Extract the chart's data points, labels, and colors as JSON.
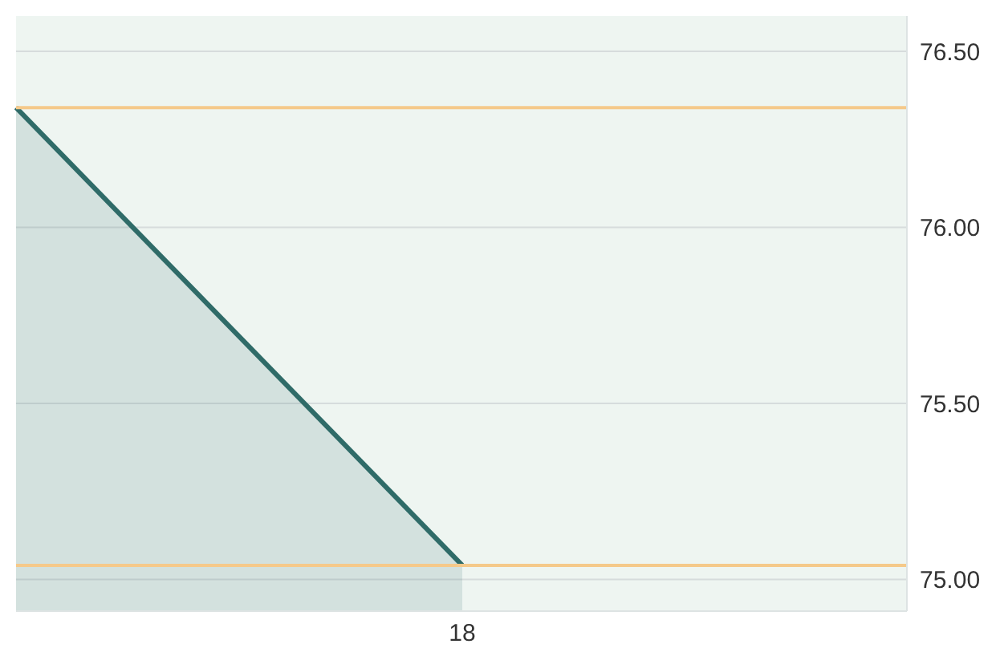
{
  "chart_data": {
    "type": "area",
    "categories": [
      null,
      "18"
    ],
    "series": [
      {
        "color": "#2f6b68",
        "values": [
          76.34,
          75.04
        ]
      }
    ],
    "ylim": [
      74.91,
      76.6
    ],
    "yticks": [
      {
        "value": 75,
        "label": "75.00"
      },
      {
        "value": 75.5,
        "label": "75.50"
      },
      {
        "value": 76,
        "label": "76.00"
      },
      {
        "value": 76.5,
        "label": "76.50"
      }
    ],
    "ref_lines": [
      {
        "axis": "y",
        "value": 76.34,
        "color": "#f5c98a"
      },
      {
        "axis": "y",
        "value": 75.04,
        "color": "#f5c98a"
      }
    ],
    "grid": true,
    "marker": "none",
    "legend": false
  }
}
